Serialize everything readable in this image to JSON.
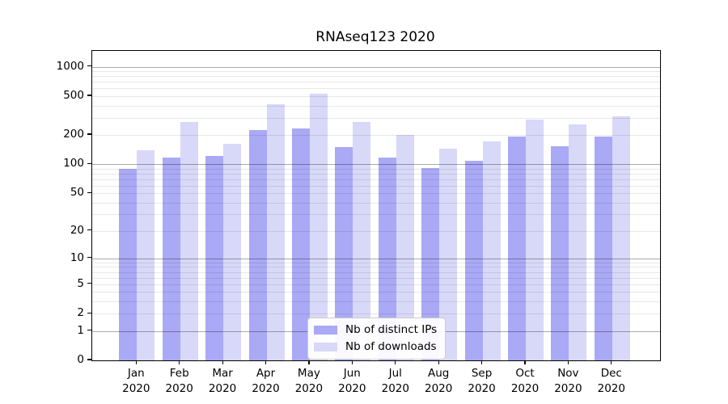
{
  "chart_data": {
    "type": "bar",
    "title": "RNAseq123 2020",
    "categories": [
      "Jan",
      "Feb",
      "Mar",
      "Apr",
      "May",
      "Jun",
      "Jul",
      "Aug",
      "Sep",
      "Oct",
      "Nov",
      "Dec"
    ],
    "x_year_label": "2020",
    "series": [
      {
        "name": "Nb of distinct IPs",
        "color": "#a9a9f5",
        "values": [
          90,
          118,
          122,
          224,
          235,
          151,
          118,
          92,
          108,
          192,
          154,
          193
        ]
      },
      {
        "name": "Nb of downloads",
        "color": "#d8d8f8",
        "values": [
          140,
          270,
          163,
          415,
          530,
          270,
          202,
          145,
          173,
          288,
          255,
          310
        ]
      }
    ],
    "yscale": "symlog-ln(1+v)",
    "ylim": [
      0,
      1450
    ],
    "yticks": [
      0,
      1,
      2,
      5,
      10,
      20,
      50,
      100,
      200,
      500,
      1000
    ],
    "major_grid_values": [
      1,
      10,
      100,
      1000
    ],
    "minor_grid_decades": [
      1,
      10,
      100
    ],
    "grid": {
      "major": true,
      "minor": true,
      "vertical": false
    },
    "legend_position": "lower-center",
    "colors": {
      "background": "#ffffff",
      "axis": "#000000",
      "major_grid": "rgba(0,0,0,0.33)",
      "minor_grid": "rgba(0,0,0,0.09)",
      "legend_border": "#cccccc"
    }
  }
}
